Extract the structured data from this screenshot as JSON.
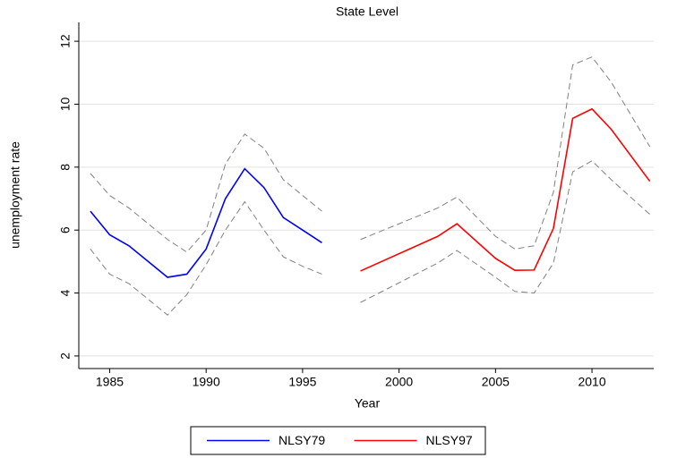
{
  "chart_data": {
    "type": "line",
    "title": "State Level",
    "xlabel": "Year",
    "ylabel": "unemployment rate",
    "xlim": [
      1983.4,
      2013.2
    ],
    "ylim": [
      1.6,
      12.6
    ],
    "xticks": [
      1985,
      1990,
      1995,
      2000,
      2005,
      2010
    ],
    "yticks": [
      2,
      4,
      6,
      8,
      10,
      12
    ],
    "grid": true,
    "legend": "bottom",
    "series": [
      {
        "name": "NLSY79",
        "color": "#0000ff",
        "x": [
          1984,
          1985,
          1986,
          1987,
          1988,
          1989,
          1990,
          1991,
          1992,
          1993,
          1994,
          1995,
          1996
        ],
        "values": [
          6.6,
          5.85,
          5.5,
          5.0,
          4.5,
          4.6,
          5.4,
          7.0,
          7.95,
          7.35,
          6.4,
          6.0,
          5.6
        ],
        "band": {
          "color": "#808080",
          "upper": [
            7.8,
            7.1,
            6.7,
            6.2,
            5.7,
            5.3,
            6.0,
            8.1,
            9.05,
            8.6,
            7.6,
            7.1,
            6.6
          ],
          "lower": [
            5.4,
            4.6,
            4.3,
            3.8,
            3.3,
            3.95,
            4.9,
            6.0,
            6.9,
            6.0,
            5.15,
            4.85,
            4.6
          ]
        }
      },
      {
        "name": "NLSY97",
        "color": "#ff0000",
        "x": [
          1998,
          2002,
          2003,
          2005,
          2006,
          2007,
          2008,
          2009,
          2010,
          2011,
          2013
        ],
        "values": [
          4.7,
          5.8,
          6.2,
          5.1,
          4.72,
          4.73,
          6.05,
          9.55,
          9.85,
          9.2,
          7.55
        ],
        "band": {
          "color": "#808080",
          "upper": [
            5.7,
            6.7,
            7.05,
            5.8,
            5.4,
            5.5,
            7.2,
            11.25,
            11.5,
            10.7,
            8.65
          ],
          "lower": [
            3.7,
            4.95,
            5.35,
            4.5,
            4.05,
            4.0,
            4.95,
            7.85,
            8.2,
            7.6,
            6.5
          ]
        }
      }
    ]
  }
}
